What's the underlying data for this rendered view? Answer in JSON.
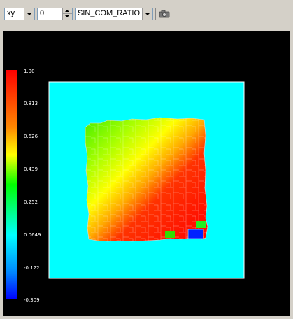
{
  "toolbar": {
    "plane_select": "xy",
    "slice_index": "0",
    "field_select": "SIN_COM_RATIO"
  },
  "icons": {
    "camera": "camera-icon",
    "dropdown": "chevron-down-icon"
  },
  "colorbar": {
    "tick_labels": [
      "1.00",
      "0.813",
      "0.626",
      "0.439",
      "0.252",
      "0.0649",
      "-0.122",
      "-0.309"
    ],
    "max": 1.0,
    "min": -0.309
  },
  "colors": {
    "background": "#000000",
    "domain_fill": "#00ffff",
    "high": "#ff0000",
    "low": "#0000ff"
  }
}
